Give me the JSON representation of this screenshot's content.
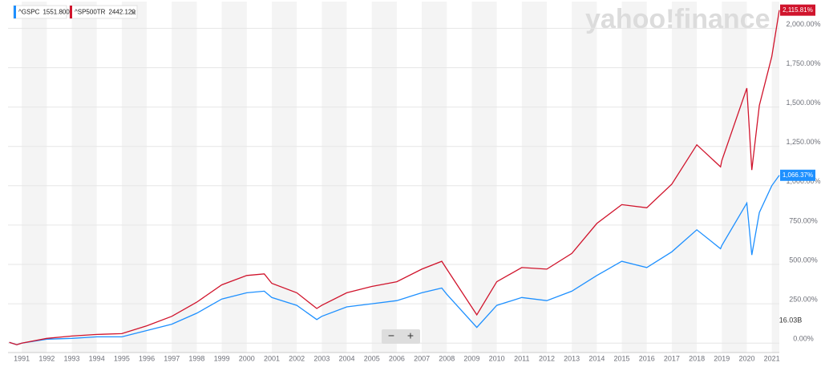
{
  "chart_data": {
    "type": "line",
    "watermark": "yahoo!finance",
    "volume_label": "16.03B",
    "controls": {
      "zoom_out": "−",
      "zoom_in": "+"
    },
    "x": [
      1990.5,
      1990.8,
      1991,
      1992,
      1993,
      1994,
      1995,
      1996,
      1997,
      1998,
      1999,
      2000,
      2000.7,
      2001,
      2002,
      2002.8,
      2003,
      2004,
      2005,
      2006,
      2007,
      2007.8,
      2008,
      2009.2,
      2010,
      2011,
      2012,
      2013,
      2014,
      2015,
      2016,
      2017,
      2018,
      2018.95,
      2019,
      2020,
      2020.2,
      2020.5,
      2021,
      2021.3
    ],
    "series": [
      {
        "name": "^GSPC",
        "legend_value": "1551.800",
        "last_label": "1,066.37%",
        "color": "#1e90ff",
        "values": [
          5,
          -10,
          0,
          25,
          30,
          40,
          40,
          80,
          120,
          190,
          280,
          320,
          330,
          290,
          240,
          150,
          170,
          230,
          250,
          270,
          320,
          350,
          310,
          100,
          240,
          290,
          270,
          330,
          430,
          520,
          480,
          580,
          720,
          600,
          620,
          890,
          560,
          830,
          1000,
          1066.37
        ]
      },
      {
        "name": "^SP500TR",
        "legend_value": "2442.120",
        "last_label": "2,115.81%",
        "color": "#d0142c",
        "values": [
          5,
          -10,
          0,
          30,
          45,
          55,
          60,
          110,
          170,
          260,
          370,
          430,
          440,
          380,
          320,
          220,
          240,
          320,
          360,
          390,
          470,
          520,
          470,
          180,
          390,
          480,
          470,
          570,
          760,
          880,
          860,
          1010,
          1260,
          1120,
          1160,
          1620,
          1100,
          1510,
          1820,
          2115.81
        ]
      }
    ],
    "xlim": [
      1990.45,
      2021.3
    ],
    "xticks": [
      1991,
      1992,
      1993,
      1994,
      1995,
      1996,
      1997,
      1998,
      1999,
      2000,
      2001,
      2002,
      2003,
      2004,
      2005,
      2006,
      2007,
      2008,
      2009,
      2010,
      2011,
      2012,
      2013,
      2014,
      2015,
      2016,
      2017,
      2018,
      2019,
      2020,
      2021
    ],
    "ylim": [
      -60,
      2170
    ],
    "yticks": [
      {
        "value": 0,
        "label": "0.00%"
      },
      {
        "value": 250,
        "label": "250.00%"
      },
      {
        "value": 500,
        "label": "500.00%"
      },
      {
        "value": 750,
        "label": "750.00%"
      },
      {
        "value": 1000,
        "label": "1,000.00%"
      },
      {
        "value": 1250,
        "label": "1,250.00%"
      },
      {
        "value": 1500,
        "label": "1,500.00%"
      },
      {
        "value": 1750,
        "label": "1,750.00%"
      },
      {
        "value": 2000,
        "label": "2,000.00%"
      }
    ],
    "grid": true
  }
}
